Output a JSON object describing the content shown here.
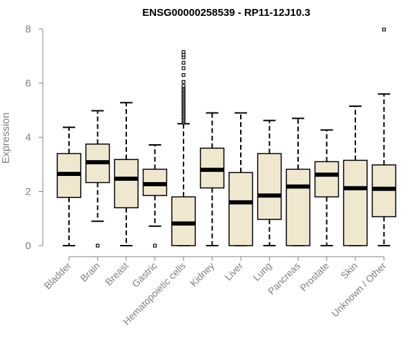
{
  "chart_data": {
    "type": "box",
    "title": "ENSG00000258539 - RP11-12J10.3",
    "xlabel": "",
    "ylabel": "Expression",
    "ylim": [
      0,
      8
    ],
    "yticks": [
      0,
      2,
      4,
      6,
      8
    ],
    "grid": false,
    "box_fill": "#efe8cf",
    "categories": [
      "Bladder",
      "Brain",
      "Breast",
      "Gastric",
      "Hematopoietic cells",
      "Kidney",
      "Liver",
      "Lung",
      "Pancreas",
      "Prostate",
      "Skin",
      "Unknown / Other"
    ],
    "boxes": [
      {
        "min": 0,
        "q1": 1.78,
        "median": 2.65,
        "q3": 3.4,
        "max": 4.37,
        "outliers": []
      },
      {
        "min": 0.9,
        "q1": 2.33,
        "median": 3.08,
        "q3": 3.75,
        "max": 4.98,
        "outliers": [
          0
        ]
      },
      {
        "min": 0,
        "q1": 1.4,
        "median": 2.47,
        "q3": 3.18,
        "max": 5.28,
        "outliers": []
      },
      {
        "min": 0.72,
        "q1": 1.85,
        "median": 2.27,
        "q3": 2.82,
        "max": 3.72,
        "outliers": [
          0
        ]
      },
      {
        "min": 0,
        "q1": 0,
        "median": 0.82,
        "q3": 1.8,
        "max": 4.5,
        "outliers": [
          4.55,
          4.6,
          4.65,
          4.7,
          4.75,
          4.8,
          4.85,
          4.9,
          4.95,
          5.0,
          5.05,
          5.1,
          5.15,
          5.2,
          5.25,
          5.3,
          5.35,
          5.4,
          5.45,
          5.5,
          5.55,
          5.6,
          5.65,
          5.7,
          5.75,
          5.8,
          5.85,
          5.9,
          6.05,
          6.3,
          6.55,
          6.75,
          6.95,
          7.05,
          7.15
        ]
      },
      {
        "min": 0,
        "q1": 2.13,
        "median": 2.8,
        "q3": 3.6,
        "max": 4.9,
        "outliers": []
      },
      {
        "min": 0,
        "q1": 0,
        "median": 1.6,
        "q3": 2.7,
        "max": 4.9,
        "outliers": []
      },
      {
        "min": 0,
        "q1": 0.97,
        "median": 1.85,
        "q3": 3.4,
        "max": 4.62,
        "outliers": []
      },
      {
        "min": 0,
        "q1": 0,
        "median": 2.18,
        "q3": 2.82,
        "max": 4.7,
        "outliers": []
      },
      {
        "min": 0,
        "q1": 1.8,
        "median": 2.62,
        "q3": 3.1,
        "max": 4.27,
        "outliers": []
      },
      {
        "min": 0,
        "q1": 0,
        "median": 2.12,
        "q3": 3.15,
        "max": 5.15,
        "outliers": []
      },
      {
        "min": 0,
        "q1": 1.07,
        "median": 2.1,
        "q3": 2.98,
        "max": 5.6,
        "outliers": [
          7.98
        ]
      }
    ]
  }
}
